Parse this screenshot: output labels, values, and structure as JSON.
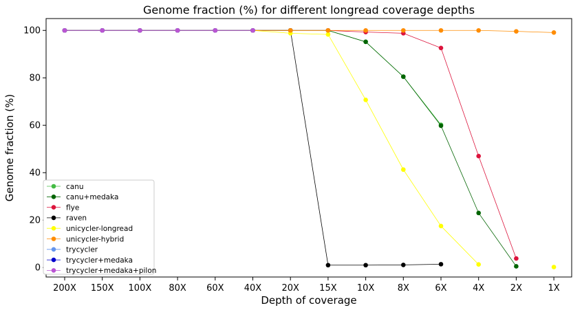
{
  "chart_data": {
    "type": "line",
    "title": "Genome fraction (%) for different longread coverage depths",
    "xlabel": "Depth of coverage",
    "ylabel": "Genome fraction (%)",
    "categories": [
      "200X",
      "150X",
      "100X",
      "80X",
      "60X",
      "40X",
      "20X",
      "15X",
      "10X",
      "8X",
      "6X",
      "4X",
      "2X",
      "1X"
    ],
    "yticks": [
      0,
      20,
      40,
      60,
      80,
      100
    ],
    "ylim": [
      -4,
      105
    ],
    "grid": false,
    "legend_position": "lower-left",
    "series": [
      {
        "name": "canu",
        "color": "#44bb44",
        "values": [
          100,
          100,
          100,
          100,
          100,
          100,
          100,
          100,
          95.2,
          80.5,
          60.2,
          null,
          null,
          null
        ]
      },
      {
        "name": "canu+medaka",
        "color": "#006400",
        "values": [
          100,
          100,
          100,
          100,
          100,
          100,
          100,
          100,
          95.2,
          80.5,
          59.8,
          23,
          0.5,
          null
        ]
      },
      {
        "name": "flye",
        "color": "#dc143c",
        "values": [
          100,
          100,
          100,
          100,
          100,
          100,
          100,
          100,
          99.3,
          98.8,
          92.6,
          47,
          3.8,
          null
        ]
      },
      {
        "name": "raven",
        "color": "#000000",
        "values": [
          100,
          100,
          100,
          100,
          100,
          100,
          100,
          1,
          1,
          1.1,
          1.4,
          null,
          null,
          null
        ]
      },
      {
        "name": "unicycler-longread",
        "color": "#ffff00",
        "values": [
          100,
          100,
          100,
          100,
          100,
          100,
          98.8,
          98.3,
          70.7,
          41.3,
          17.5,
          1.3,
          null,
          0.2
        ]
      },
      {
        "name": "unicycler-hybrid",
        "color": "#ff8c00",
        "values": [
          100,
          100,
          100,
          100,
          100,
          100,
          100,
          100,
          100,
          100,
          100,
          100,
          99.6,
          99.1
        ]
      },
      {
        "name": "trycycler",
        "color": "#6495ed",
        "values": [
          100,
          100,
          100,
          100,
          100,
          100,
          null,
          null,
          null,
          null,
          null,
          null,
          null,
          null
        ]
      },
      {
        "name": "trycycler+medaka",
        "color": "#0000cd",
        "values": [
          100,
          100,
          100,
          100,
          100,
          100,
          null,
          null,
          null,
          null,
          null,
          null,
          null,
          null
        ]
      },
      {
        "name": "trycycler+medaka+pilon",
        "color": "#ba55d3",
        "values": [
          100,
          100,
          100,
          100,
          100,
          100,
          null,
          null,
          null,
          null,
          null,
          null,
          null,
          null
        ]
      }
    ]
  }
}
